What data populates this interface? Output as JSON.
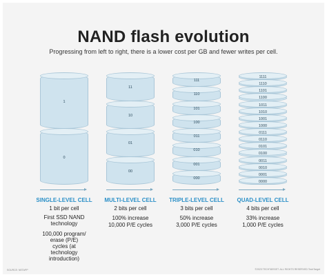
{
  "title": "NAND flash evolution",
  "subtitle": "Progressing from left to right, there is a lower cost per GB and fewer writes per cell.",
  "columns": [
    {
      "heading": "SINGLE-LEVEL CELL",
      "lines": [
        "1 bit per cell",
        "First SSD NAND technology",
        "100,000 program/ erase (P/E) cycles (at technology introduction)"
      ],
      "cells": [
        "1",
        "0"
      ]
    },
    {
      "heading": "MULTI-LEVEL CELL",
      "lines": [
        "2 bits per cell",
        "100% increase",
        "10,000 P/E cycles"
      ],
      "cells": [
        "11",
        "10",
        "01",
        "00"
      ]
    },
    {
      "heading": "TRIPLE-LEVEL CELL",
      "lines": [
        "3 bits per cell",
        "50% increase",
        "3,000 P/E cycles"
      ],
      "cells": [
        "111",
        "110",
        "101",
        "100",
        "011",
        "010",
        "001",
        "000"
      ]
    },
    {
      "heading": "QUAD-LEVEL CELL",
      "lines": [
        "4 bits per cell",
        "33% increase",
        "1,000 P/E cycles"
      ],
      "cells": [
        "1111",
        "1110",
        "1101",
        "1100",
        "1011",
        "1010",
        "1001",
        "1000",
        "0111",
        "0110",
        "0101",
        "0100",
        "0011",
        "0010",
        "0001",
        "0000"
      ]
    }
  ],
  "footer_left": "SOURCE: NETAPP",
  "footer_right": "©2023 TECHTARGET. ALL RIGHTS RESERVED TechTarget",
  "colors": {
    "accent": "#2a8fc7",
    "cell_fill": "#cfe3ee",
    "cell_border": "#aac7d8"
  }
}
